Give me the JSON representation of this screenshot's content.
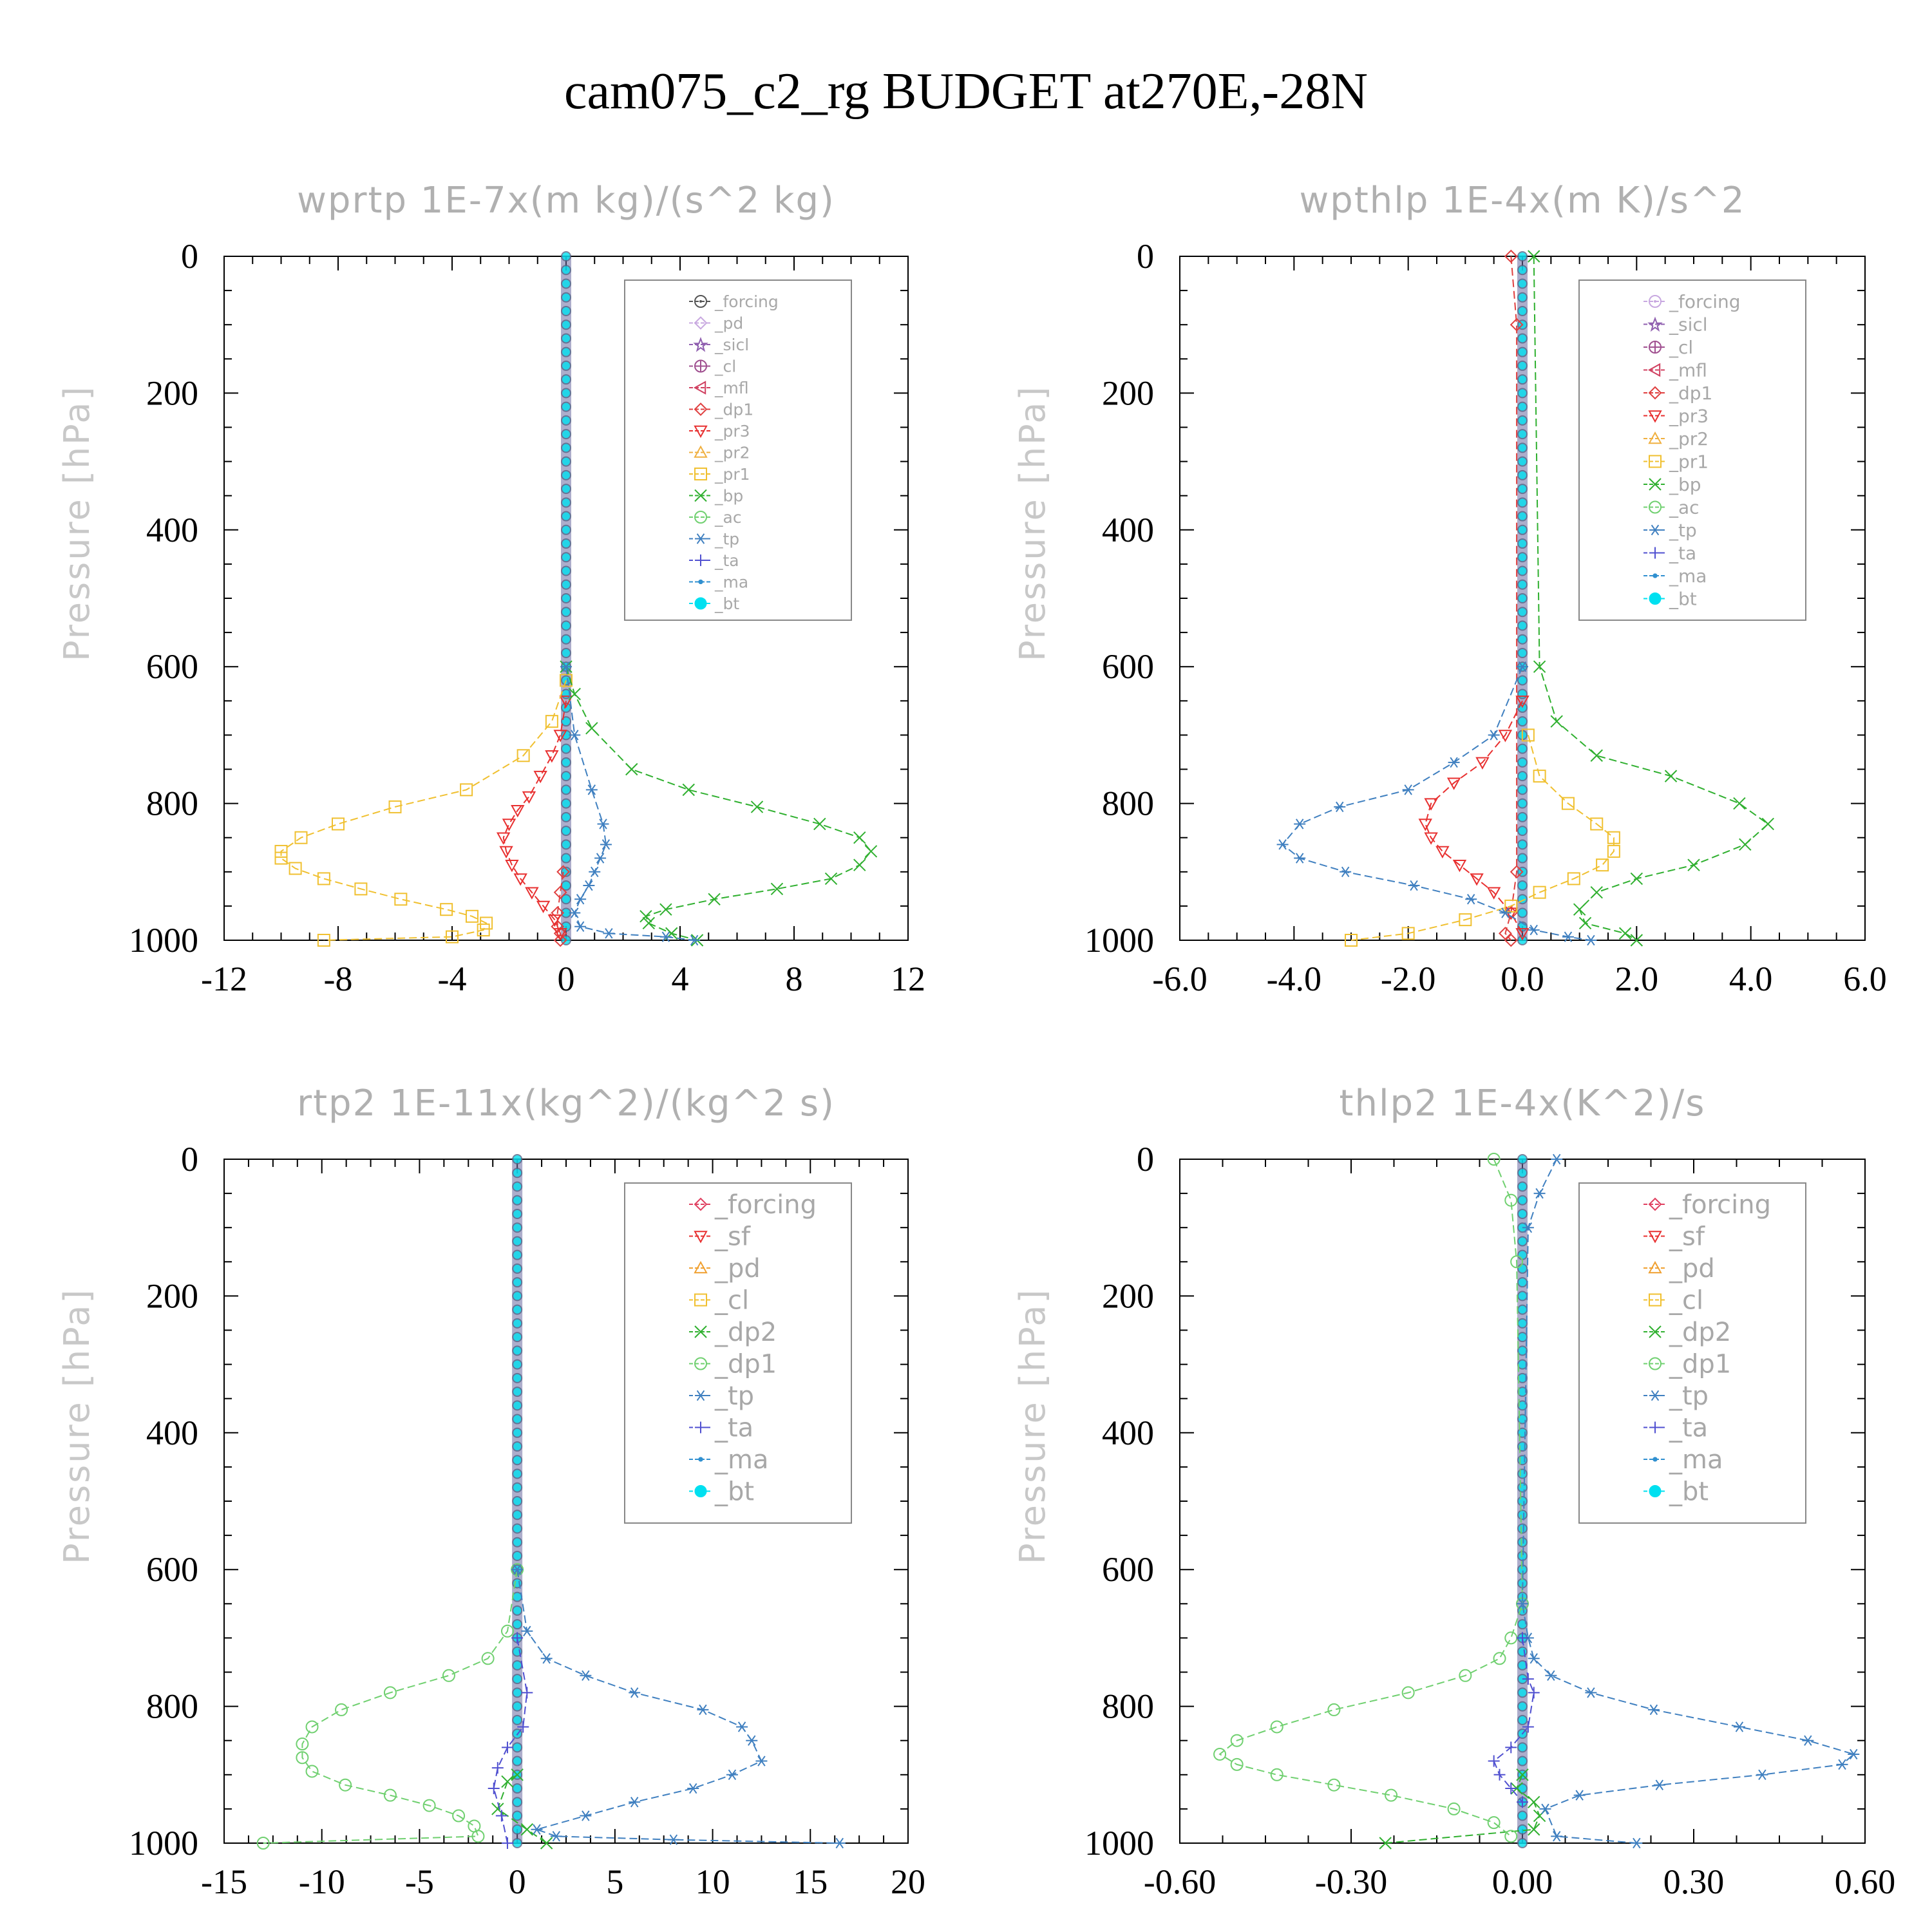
{
  "title": "cam075_c2_rg  BUDGET at270E,-28N",
  "chart_data": [
    {
      "type": "line",
      "title": "wprtp   1E-7x(m kg)/(s^2 kg)",
      "ylabel": "Pressure [hPa]",
      "xlim": [
        -12,
        12
      ],
      "ylim": [
        1000,
        0
      ],
      "xticks": [
        "-12",
        "-8",
        "-4",
        "0",
        "4",
        "8",
        "12"
      ],
      "yticks": [
        "0",
        "200",
        "400",
        "600",
        "800",
        "1000"
      ],
      "legend_position": "top-right",
      "series": [
        {
          "name": "_forcing",
          "color": "#555555",
          "marker": "circle-dot",
          "x": [
            0
          ],
          "y": [
            0
          ]
        },
        {
          "name": "_pd",
          "color": "#c8a8e0",
          "marker": "diamond",
          "x": [
            0
          ],
          "y": [
            0
          ]
        },
        {
          "name": "_sicl",
          "color": "#9060b0",
          "marker": "star",
          "x": [
            0
          ],
          "y": [
            0
          ]
        },
        {
          "name": "_cl",
          "color": "#a05090",
          "marker": "circle-plus",
          "x": [
            0
          ],
          "y": [
            0
          ]
        },
        {
          "name": "_mfl",
          "color": "#d04060",
          "marker": "left-triangle",
          "x": [
            0
          ],
          "y": [
            0
          ]
        },
        {
          "name": "_dp1",
          "color": "#e04040",
          "marker": "diamond",
          "x": [
            -0.1,
            -0.2,
            -0.3,
            -0.3,
            -0.2,
            -0.2
          ],
          "y": [
            900,
            930,
            960,
            980,
            990,
            1000
          ]
        },
        {
          "name": "_pr3",
          "color": "#e83030",
          "marker": "down-triangle",
          "x": [
            0,
            -0.2,
            -0.5,
            -0.9,
            -1.3,
            -1.7,
            -2.0,
            -2.2,
            -2.1,
            -1.9,
            -1.6,
            -1.2,
            -0.8,
            -0.4,
            -0.2
          ],
          "y": [
            650,
            700,
            730,
            760,
            790,
            810,
            830,
            850,
            870,
            890,
            910,
            930,
            950,
            970,
            990
          ]
        },
        {
          "name": "_pr2",
          "color": "#f0b040",
          "marker": "up-triangle",
          "x": [
            0
          ],
          "y": [
            0
          ]
        },
        {
          "name": "_pr1",
          "color": "#f0c030",
          "marker": "square",
          "x": [
            0,
            -0.5,
            -1.5,
            -3.5,
            -6.0,
            -8.0,
            -9.3,
            -10.0,
            -10.0,
            -9.5,
            -8.5,
            -7.2,
            -5.8,
            -4.2,
            -3.3,
            -2.8,
            -2.9,
            -4.0,
            -8.5
          ],
          "y": [
            620,
            680,
            730,
            780,
            805,
            830,
            850,
            870,
            880,
            895,
            910,
            925,
            940,
            955,
            965,
            975,
            985,
            995,
            1000
          ]
        },
        {
          "name": "_bp",
          "color": "#30b030",
          "marker": "cross",
          "x": [
            0,
            0.3,
            0.9,
            2.3,
            4.3,
            6.7,
            8.9,
            10.3,
            10.7,
            10.3,
            9.3,
            7.4,
            5.2,
            3.5,
            2.8,
            2.9,
            3.7,
            4.6
          ],
          "y": [
            600,
            640,
            690,
            750,
            780,
            805,
            830,
            850,
            870,
            890,
            910,
            925,
            940,
            955,
            965,
            975,
            990,
            1000
          ]
        },
        {
          "name": "_ac",
          "color": "#70d070",
          "marker": "circle",
          "x": [
            0
          ],
          "y": [
            0
          ]
        },
        {
          "name": "_tp",
          "color": "#4080c0",
          "marker": "asterisk",
          "x": [
            0,
            0.3,
            0.9,
            1.3,
            1.4,
            1.2,
            1.0,
            0.8,
            0.5,
            0.3,
            0.5,
            1.5,
            3.5,
            4.5
          ],
          "y": [
            600,
            700,
            780,
            830,
            860,
            880,
            900,
            920,
            940,
            960,
            980,
            990,
            995,
            1000
          ]
        },
        {
          "name": "_ta",
          "color": "#5050d0",
          "marker": "plus",
          "x": [
            0
          ],
          "y": [
            0
          ]
        },
        {
          "name": "_ma",
          "color": "#3090d0",
          "marker": "dot",
          "x": [
            0
          ],
          "y": [
            0
          ]
        },
        {
          "name": "_bt",
          "color": "#00e0f0",
          "marker": "filled-circle",
          "x": [
            0
          ],
          "y": [
            0
          ]
        }
      ]
    },
    {
      "type": "line",
      "title": "wpthlp   1E-4x(m K)/s^2",
      "ylabel": "Pressure [hPa]",
      "xlim": [
        -6.0,
        6.0
      ],
      "ylim": [
        1000,
        0
      ],
      "xticks": [
        "-6.0",
        "-4.0",
        "-2.0",
        "0.0",
        "2.0",
        "4.0",
        "6.0"
      ],
      "yticks": [
        "0",
        "200",
        "400",
        "600",
        "800",
        "1000"
      ],
      "legend_position": "top-right",
      "series": [
        {
          "name": "_forcing",
          "color": "#c8a8e0",
          "marker": "circle-dot",
          "x": [
            0
          ],
          "y": [
            0
          ]
        },
        {
          "name": "_sicl",
          "color": "#9060b0",
          "marker": "star",
          "x": [
            0
          ],
          "y": [
            0
          ]
        },
        {
          "name": "_cl",
          "color": "#a05090",
          "marker": "circle-plus",
          "x": [
            0
          ],
          "y": [
            0
          ]
        },
        {
          "name": "_mfl",
          "color": "#d04060",
          "marker": "left-triangle",
          "x": [
            0
          ],
          "y": [
            0
          ]
        },
        {
          "name": "_dp1",
          "color": "#e04040",
          "marker": "diamond",
          "x": [
            -0.2,
            -0.1,
            -0.1,
            -0.2,
            -0.3,
            -0.2
          ],
          "y": [
            0,
            100,
            900,
            960,
            990,
            1000
          ]
        },
        {
          "name": "_pr3",
          "color": "#e83030",
          "marker": "down-triangle",
          "x": [
            0,
            -0.3,
            -0.7,
            -1.2,
            -1.6,
            -1.7,
            -1.6,
            -1.4,
            -1.1,
            -0.8,
            -0.5,
            -0.2,
            0
          ],
          "y": [
            650,
            700,
            740,
            770,
            800,
            830,
            850,
            870,
            890,
            910,
            930,
            960,
            990
          ]
        },
        {
          "name": "_pr2",
          "color": "#f0b040",
          "marker": "up-triangle",
          "x": [
            0
          ],
          "y": [
            0
          ]
        },
        {
          "name": "_pr1",
          "color": "#f0c030",
          "marker": "square",
          "x": [
            0.1,
            0.3,
            0.8,
            1.3,
            1.6,
            1.6,
            1.4,
            0.9,
            0.3,
            -0.2,
            -1.0,
            -2.0,
            -3.0
          ],
          "y": [
            700,
            760,
            800,
            830,
            850,
            870,
            890,
            910,
            930,
            950,
            970,
            990,
            1000
          ]
        },
        {
          "name": "_bp",
          "color": "#30b030",
          "marker": "cross",
          "x": [
            0.2,
            0.3,
            0.6,
            1.3,
            2.6,
            3.8,
            4.3,
            3.9,
            3.0,
            2.0,
            1.3,
            1.0,
            1.1,
            1.8,
            2.0
          ],
          "y": [
            0,
            600,
            680,
            730,
            760,
            800,
            830,
            860,
            890,
            910,
            930,
            955,
            975,
            990,
            1000
          ]
        },
        {
          "name": "_ac",
          "color": "#70d070",
          "marker": "circle",
          "x": [
            0
          ],
          "y": [
            0
          ]
        },
        {
          "name": "_tp",
          "color": "#4080c0",
          "marker": "asterisk",
          "x": [
            0,
            -0.5,
            -1.2,
            -2.0,
            -3.2,
            -3.9,
            -4.2,
            -3.9,
            -3.1,
            -1.9,
            -0.9,
            -0.3,
            0.2,
            0.8,
            1.2
          ],
          "y": [
            600,
            700,
            740,
            780,
            805,
            830,
            860,
            880,
            900,
            920,
            940,
            960,
            985,
            995,
            1000
          ]
        },
        {
          "name": "_ta",
          "color": "#5050d0",
          "marker": "plus",
          "x": [
            0
          ],
          "y": [
            0
          ]
        },
        {
          "name": "_ma",
          "color": "#3090d0",
          "marker": "dot",
          "x": [
            0
          ],
          "y": [
            0
          ]
        },
        {
          "name": "_bt",
          "color": "#00e0f0",
          "marker": "filled-circle",
          "x": [
            0
          ],
          "y": [
            0
          ]
        }
      ]
    },
    {
      "type": "line",
      "title": "rtp2   1E-11x(kg^2)/(kg^2 s)",
      "ylabel": "Pressure [hPa]",
      "xlim": [
        -15,
        20
      ],
      "ylim": [
        1000,
        0
      ],
      "xticks": [
        "-15",
        "-10",
        "-5",
        "0",
        "5",
        "10",
        "15",
        "20"
      ],
      "yticks": [
        "0",
        "200",
        "400",
        "600",
        "800",
        "1000"
      ],
      "legend_position": "top-right",
      "series": [
        {
          "name": "_forcing",
          "color": "#e04060",
          "marker": "diamond",
          "x": [
            0
          ],
          "y": [
            0
          ]
        },
        {
          "name": "_sf",
          "color": "#e83030",
          "marker": "down-triangle",
          "x": [
            0
          ],
          "y": [
            0
          ]
        },
        {
          "name": "_pd",
          "color": "#f0a030",
          "marker": "up-triangle",
          "x": [
            0
          ],
          "y": [
            0
          ]
        },
        {
          "name": "_cl",
          "color": "#f0c030",
          "marker": "square",
          "x": [
            0
          ],
          "y": [
            0
          ]
        },
        {
          "name": "_dp2",
          "color": "#30b030",
          "marker": "cross",
          "x": [
            0,
            -0.5,
            -1.0,
            0.5,
            1.5
          ],
          "y": [
            900,
            910,
            950,
            980,
            1000
          ]
        },
        {
          "name": "_dp1",
          "color": "#70d070",
          "marker": "circle",
          "x": [
            0,
            -0.5,
            -1.5,
            -3.5,
            -6.5,
            -9.0,
            -10.5,
            -11.0,
            -11.0,
            -10.5,
            -8.8,
            -6.5,
            -4.5,
            -3.0,
            -2.2,
            -2.0,
            -13.0
          ],
          "y": [
            600,
            690,
            730,
            755,
            780,
            805,
            830,
            855,
            875,
            895,
            915,
            930,
            945,
            960,
            975,
            990,
            1000
          ]
        },
        {
          "name": "_tp",
          "color": "#4080c0",
          "marker": "asterisk",
          "x": [
            0,
            0.5,
            1.5,
            3.5,
            6.0,
            9.5,
            11.5,
            12.0,
            12.5,
            11.0,
            9.0,
            6.0,
            3.5,
            1.0,
            2.0,
            8.0,
            16.5
          ],
          "y": [
            600,
            690,
            730,
            755,
            780,
            805,
            830,
            850,
            880,
            900,
            920,
            940,
            960,
            980,
            990,
            995,
            1000
          ]
        },
        {
          "name": "_ta",
          "color": "#5050d0",
          "marker": "plus",
          "x": [
            0,
            0.5,
            0.3,
            -0.5,
            -1.0,
            -1.2,
            -0.8,
            -0.5
          ],
          "y": [
            700,
            780,
            830,
            860,
            890,
            920,
            960,
            1000
          ]
        },
        {
          "name": "_ma",
          "color": "#3090d0",
          "marker": "dot",
          "x": [
            0
          ],
          "y": [
            0
          ]
        },
        {
          "name": "_bt",
          "color": "#00e0f0",
          "marker": "filled-circle",
          "x": [
            0
          ],
          "y": [
            0
          ]
        }
      ]
    },
    {
      "type": "line",
      "title": "thlp2   1E-4x(K^2)/s",
      "ylabel": "Pressure [hPa]",
      "xlim": [
        -0.6,
        0.6
      ],
      "ylim": [
        1000,
        0
      ],
      "xticks": [
        "-0.60",
        "-0.30",
        "0.00",
        "0.30",
        "0.60"
      ],
      "yticks": [
        "0",
        "200",
        "400",
        "600",
        "800",
        "1000"
      ],
      "legend_position": "top-right",
      "series": [
        {
          "name": "_forcing",
          "color": "#e04060",
          "marker": "diamond",
          "x": [
            0
          ],
          "y": [
            0
          ]
        },
        {
          "name": "_sf",
          "color": "#e83030",
          "marker": "down-triangle",
          "x": [
            0
          ],
          "y": [
            0
          ]
        },
        {
          "name": "_pd",
          "color": "#f0a030",
          "marker": "up-triangle",
          "x": [
            0
          ],
          "y": [
            0
          ]
        },
        {
          "name": "_cl",
          "color": "#f0c030",
          "marker": "square",
          "x": [
            0
          ],
          "y": [
            0
          ]
        },
        {
          "name": "_dp2",
          "color": "#30b030",
          "marker": "cross",
          "x": [
            0,
            -0.01,
            0.02,
            0.03,
            0.02,
            -0.24
          ],
          "y": [
            900,
            920,
            940,
            960,
            980,
            1000
          ]
        },
        {
          "name": "_dp1",
          "color": "#70d070",
          "marker": "circle",
          "x": [
            -0.05,
            -0.02,
            -0.01,
            0,
            -0.02,
            -0.04,
            -0.1,
            -0.2,
            -0.33,
            -0.43,
            -0.5,
            -0.53,
            -0.5,
            -0.43,
            -0.33,
            -0.23,
            -0.12,
            -0.05,
            -0.02
          ],
          "y": [
            0,
            60,
            150,
            650,
            700,
            730,
            755,
            780,
            805,
            830,
            850,
            870,
            885,
            900,
            915,
            930,
            950,
            970,
            990
          ]
        },
        {
          "name": "_tp",
          "color": "#4080c0",
          "marker": "asterisk",
          "x": [
            0.06,
            0.03,
            0.01,
            0,
            0.01,
            0.02,
            0.05,
            0.12,
            0.23,
            0.38,
            0.5,
            0.58,
            0.56,
            0.42,
            0.24,
            0.1,
            0.04,
            0.06,
            0.2
          ],
          "y": [
            0,
            50,
            100,
            650,
            700,
            730,
            755,
            780,
            805,
            830,
            850,
            870,
            885,
            900,
            915,
            930,
            950,
            990,
            1000
          ]
        },
        {
          "name": "_ta",
          "color": "#5050d0",
          "marker": "plus",
          "x": [
            0,
            0.01,
            0.02,
            0.01,
            -0.02,
            -0.05,
            -0.04,
            -0.02,
            0
          ],
          "y": [
            700,
            760,
            780,
            830,
            860,
            880,
            900,
            920,
            940
          ]
        },
        {
          "name": "_ma",
          "color": "#3090d0",
          "marker": "dot",
          "x": [
            0
          ],
          "y": [
            0
          ]
        },
        {
          "name": "_bt",
          "color": "#00e0f0",
          "marker": "filled-circle",
          "x": [
            0
          ],
          "y": [
            0
          ]
        }
      ]
    }
  ]
}
